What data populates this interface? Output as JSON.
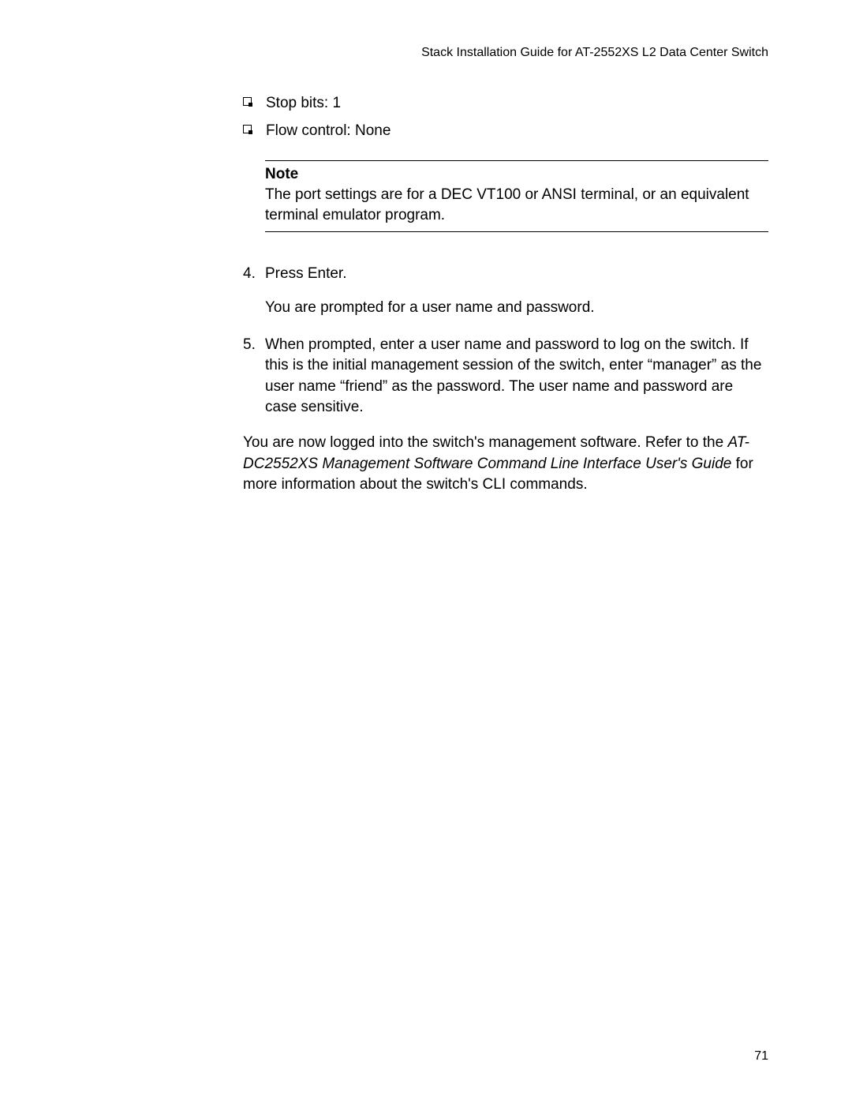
{
  "header": {
    "title": "Stack Installation Guide for AT-2552XS L2 Data Center Switch"
  },
  "bullets": [
    "Stop bits: 1",
    "Flow control: None"
  ],
  "note": {
    "title": "Note",
    "body": "The port settings are for a DEC VT100 or ANSI terminal, or an equivalent terminal emulator program."
  },
  "steps": [
    {
      "number": "4.",
      "text": "Press Enter.",
      "sub": "You are prompted for a user name and password."
    },
    {
      "number": "5.",
      "text": "When prompted, enter a user name and password to log on the switch. If this is the initial management session of the switch, enter “manager” as the user name “friend” as the password. The user name and password are case sensitive."
    }
  ],
  "closing": {
    "prefix": "You are now logged into the switch's management software. Refer to the ",
    "italic": "AT-DC2552XS Management Software Command Line Interface User's Guide",
    "suffix": " for more information about the switch's CLI commands."
  },
  "pageNumber": "71"
}
